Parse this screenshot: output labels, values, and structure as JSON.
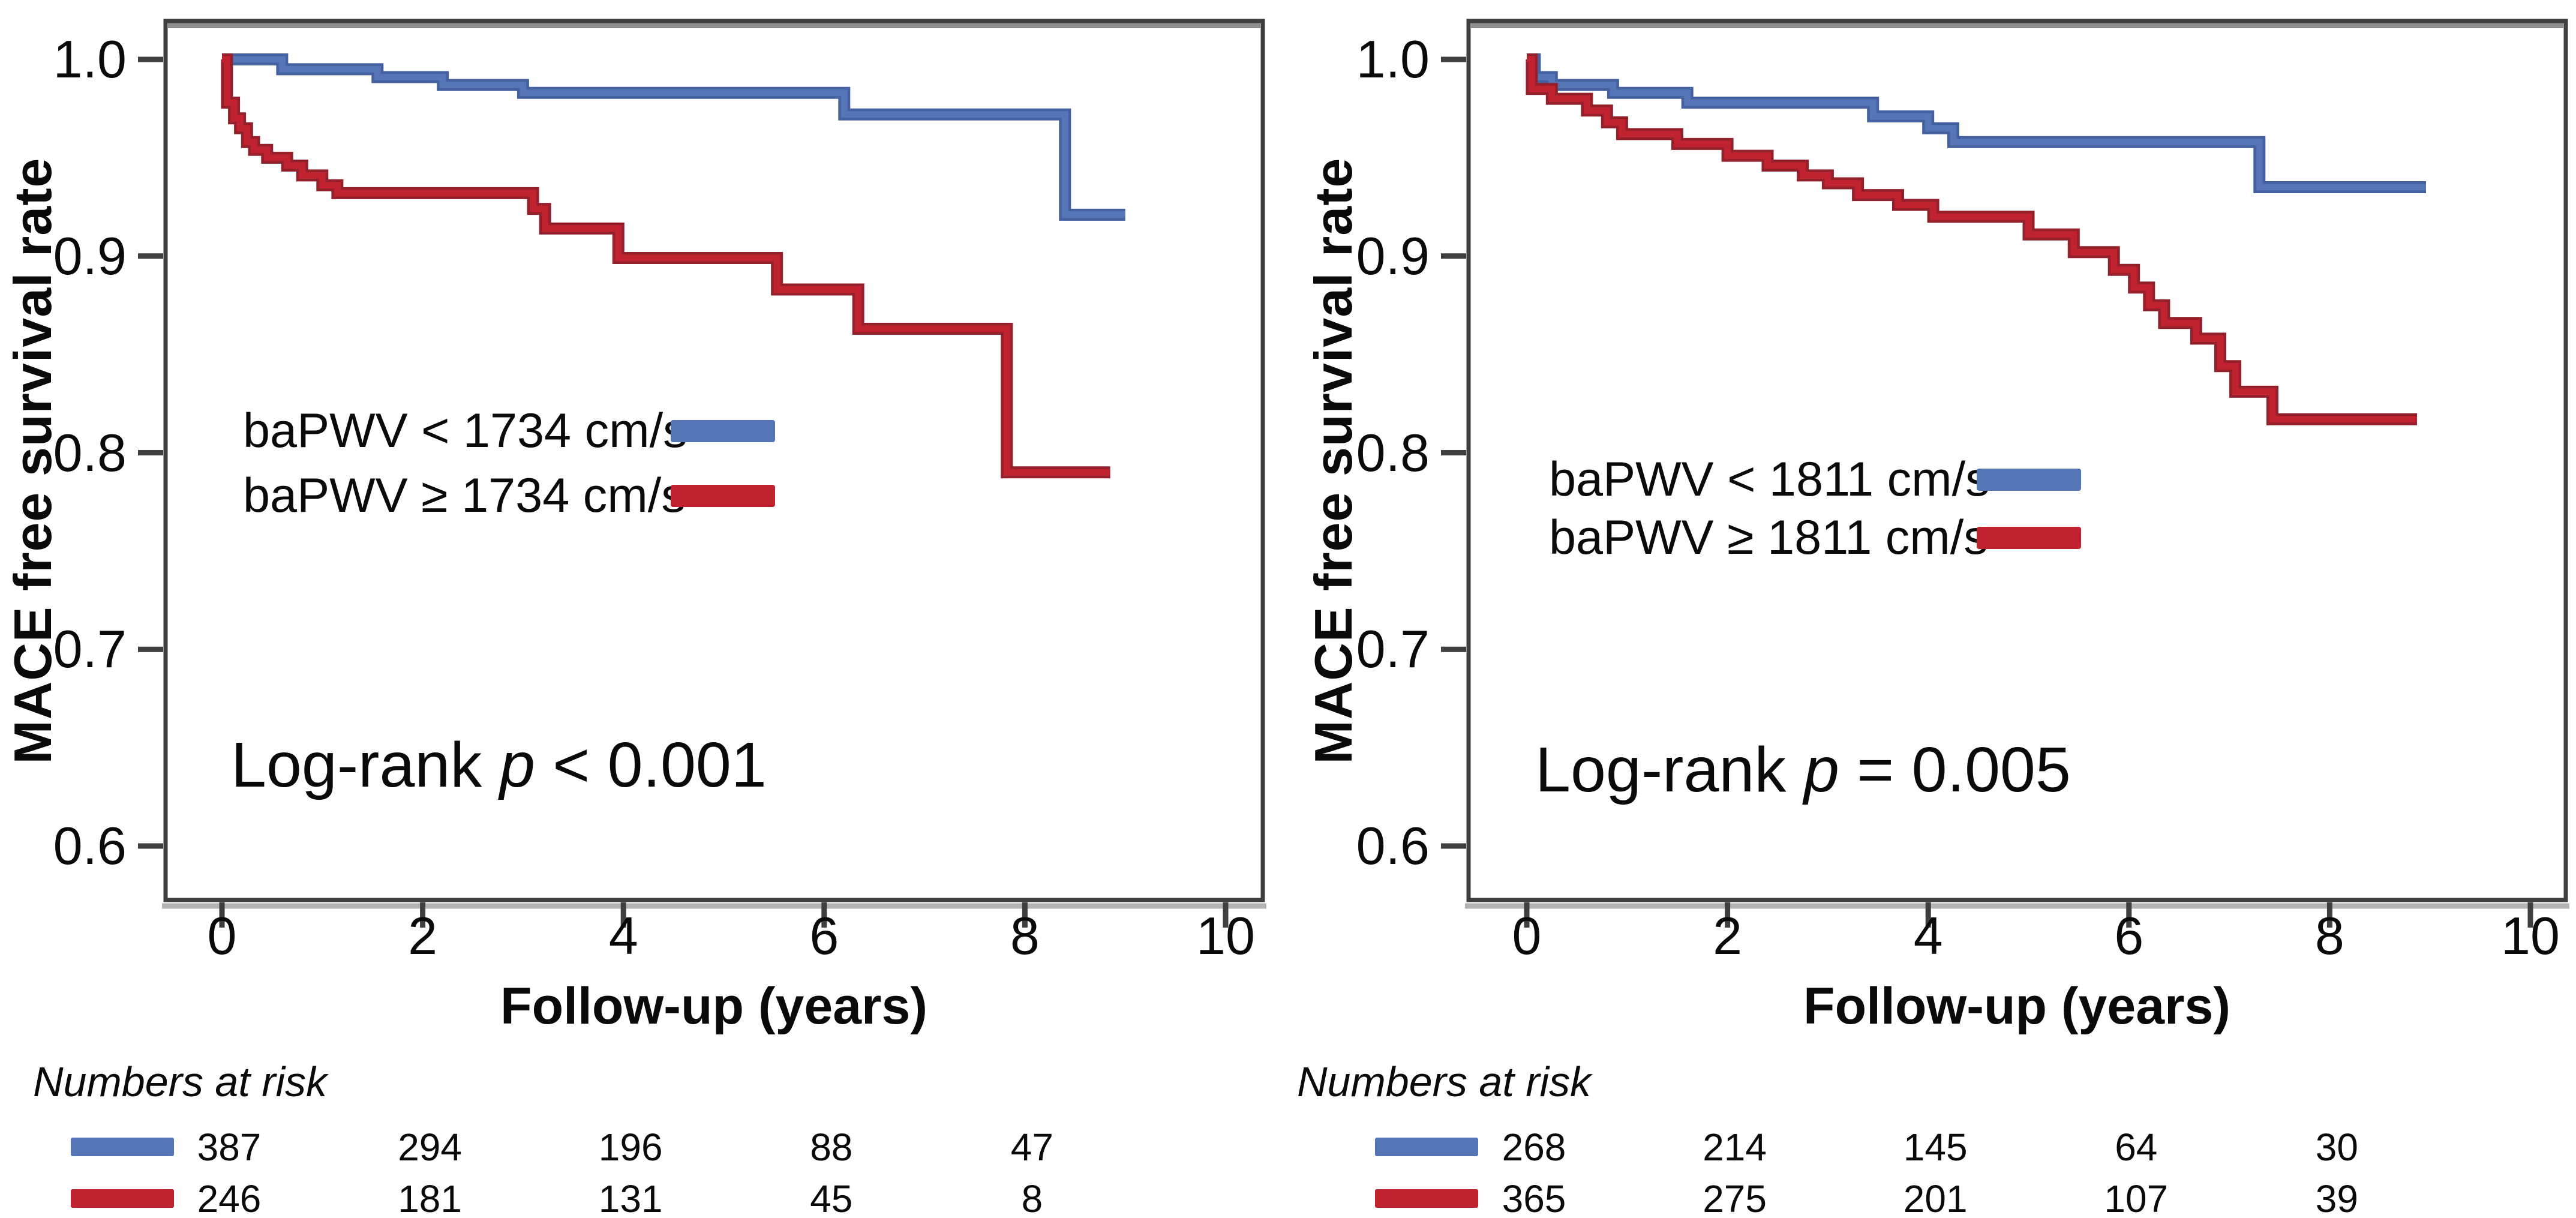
{
  "figure": {
    "ylabel": "MACE free survival rate",
    "xlabel": "Follow-up (years)",
    "risk_header": "Numbers at risk",
    "y_ticks": [
      "1.0",
      "0.9",
      "0.8",
      "0.7",
      "0.6"
    ],
    "x_ticks": [
      "0",
      "2",
      "4",
      "6",
      "8",
      "10"
    ],
    "colors": {
      "blue": "#5575b7",
      "blue_dark": "#44609f",
      "red": "#c0232f",
      "red_dark": "#93202b",
      "axis": "#3f3f3f",
      "shadow": "#8f8f8f",
      "shadow_light": "#b4b4b4",
      "text": "#0a0a0a"
    }
  },
  "chart_data": [
    {
      "type": "line",
      "panel": "left",
      "title": "",
      "xlabel": "Follow-up (years)",
      "ylabel": "MACE free survival rate",
      "xlim": [
        0,
        10
      ],
      "ylim": [
        0.6,
        1.0
      ],
      "grid": false,
      "legend_position": "center-left-inside",
      "legend": [
        {
          "label": "baPWV < 1734 cm/s",
          "color": "blue"
        },
        {
          "label": "baPWV ≥ 1734 cm/s",
          "color": "red"
        }
      ],
      "annotation": {
        "pre": "Log-rank ",
        "italic": "p",
        "post": " < 0.001"
      },
      "series": [
        {
          "name": "baPWV < 1734 cm/s",
          "color": "blue",
          "points": [
            [
              0,
              1.0
            ],
            [
              0.6,
              0.995
            ],
            [
              1.55,
              0.991
            ],
            [
              2.2,
              0.987
            ],
            [
              3.0,
              0.983
            ],
            [
              6.2,
              0.972
            ],
            [
              8.4,
              0.921
            ],
            [
              9.0,
              0.921
            ]
          ]
        },
        {
          "name": "baPWV ≥ 1734 cm/s",
          "color": "red",
          "points": [
            [
              0,
              1.0
            ],
            [
              0.05,
              0.978
            ],
            [
              0.12,
              0.97
            ],
            [
              0.18,
              0.965
            ],
            [
              0.25,
              0.958
            ],
            [
              0.32,
              0.954
            ],
            [
              0.45,
              0.95
            ],
            [
              0.65,
              0.946
            ],
            [
              0.8,
              0.941
            ],
            [
              1.0,
              0.936
            ],
            [
              1.15,
              0.932
            ],
            [
              3.1,
              0.924
            ],
            [
              3.22,
              0.914
            ],
            [
              3.95,
              0.899
            ],
            [
              5.53,
              0.883
            ],
            [
              6.34,
              0.863
            ],
            [
              7.82,
              0.79
            ],
            [
              8.85,
              0.79
            ]
          ]
        }
      ],
      "numbers_at_risk": {
        "times": [
          0,
          2,
          4,
          6,
          8
        ],
        "rows": [
          {
            "color": "blue",
            "values": [
              "387",
              "294",
              "196",
              "88",
              "47"
            ]
          },
          {
            "color": "red",
            "values": [
              "246",
              "181",
              "131",
              "45",
              "8"
            ]
          }
        ]
      }
    },
    {
      "type": "line",
      "panel": "right",
      "title": "",
      "xlabel": "Follow-up (years)",
      "ylabel": "MACE free survival rate",
      "xlim": [
        0,
        10
      ],
      "ylim": [
        0.6,
        1.0
      ],
      "grid": false,
      "legend_position": "center-left-inside",
      "legend": [
        {
          "label": "baPWV < 1811 cm/s",
          "color": "blue"
        },
        {
          "label": "baPWV ≥ 1811 cm/s",
          "color": "red"
        }
      ],
      "annotation": {
        "pre": "Log-rank ",
        "italic": "p",
        "post": " = 0.005"
      },
      "series": [
        {
          "name": "baPWV < 1811 cm/s",
          "color": "blue",
          "points": [
            [
              0,
              1.0
            ],
            [
              0.08,
              0.991
            ],
            [
              0.25,
              0.987
            ],
            [
              0.86,
              0.983
            ],
            [
              1.6,
              0.978
            ],
            [
              3.45,
              0.971
            ],
            [
              4.0,
              0.965
            ],
            [
              4.25,
              0.958
            ],
            [
              7.3,
              0.935
            ],
            [
              8.96,
              0.935
            ]
          ]
        },
        {
          "name": "baPWV ≥ 1811 cm/s",
          "color": "red",
          "points": [
            [
              0,
              1.0
            ],
            [
              0.05,
              0.985
            ],
            [
              0.25,
              0.98
            ],
            [
              0.6,
              0.974
            ],
            [
              0.8,
              0.968
            ],
            [
              0.95,
              0.962
            ],
            [
              1.5,
              0.957
            ],
            [
              2.0,
              0.951
            ],
            [
              2.4,
              0.946
            ],
            [
              2.75,
              0.941
            ],
            [
              3.0,
              0.937
            ],
            [
              3.3,
              0.931
            ],
            [
              3.7,
              0.926
            ],
            [
              4.05,
              0.92
            ],
            [
              5.0,
              0.911
            ],
            [
              5.45,
              0.902
            ],
            [
              5.85,
              0.893
            ],
            [
              6.05,
              0.884
            ],
            [
              6.2,
              0.875
            ],
            [
              6.35,
              0.866
            ],
            [
              6.67,
              0.858
            ],
            [
              6.91,
              0.844
            ],
            [
              7.06,
              0.831
            ],
            [
              7.43,
              0.817
            ],
            [
              8.87,
              0.817
            ]
          ]
        }
      ],
      "numbers_at_risk": {
        "times": [
          0,
          2,
          4,
          6,
          8
        ],
        "rows": [
          {
            "color": "blue",
            "values": [
              "268",
              "214",
              "145",
              "64",
              "30"
            ]
          },
          {
            "color": "red",
            "values": [
              "365",
              "275",
              "201",
              "107",
              "39"
            ]
          }
        ]
      }
    }
  ]
}
